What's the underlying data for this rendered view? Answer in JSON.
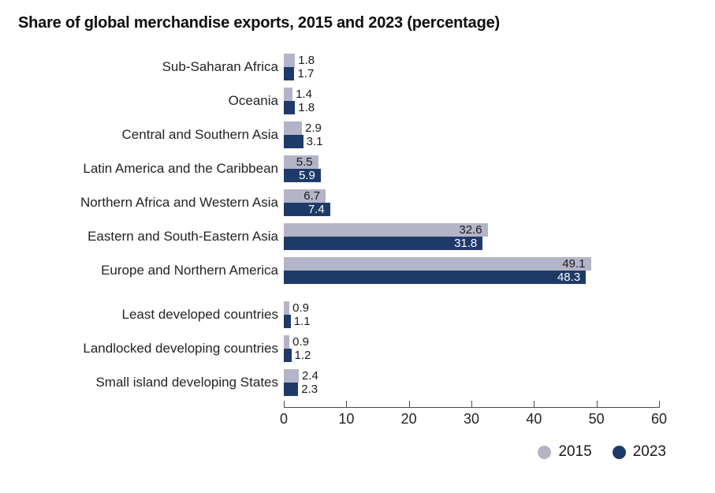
{
  "title": "Share of global merchandise exports, 2015 and 2023 (percentage)",
  "chart_data": {
    "type": "bar",
    "orientation": "horizontal",
    "title": "Share of global merchandise exports, 2015 and 2023 (percentage)",
    "categories": [
      "Sub-Saharan Africa",
      "Oceania",
      "Central and Southern Asia",
      "Latin America and the Caribbean",
      "Northern Africa and Western Asia",
      "Eastern and South-Eastern Asia",
      "Europe and Northern America",
      "Least developed countries",
      "Landlocked developing countries",
      "Small island developing States"
    ],
    "groups": [
      0,
      0,
      0,
      0,
      0,
      0,
      0,
      1,
      1,
      1
    ],
    "series": [
      {
        "name": "2015",
        "color": "#b3b4c7",
        "values": [
          1.8,
          1.4,
          2.9,
          5.5,
          6.7,
          32.6,
          49.1,
          0.9,
          0.9,
          2.4
        ]
      },
      {
        "name": "2023",
        "color": "#1e3a68",
        "values": [
          1.7,
          1.8,
          3.1,
          5.9,
          7.4,
          31.8,
          48.3,
          1.1,
          1.2,
          2.3
        ]
      }
    ],
    "x_axis": {
      "min": 0,
      "max": 60,
      "ticks": [
        0,
        10,
        20,
        30,
        40,
        50,
        60
      ]
    },
    "value_labels": true,
    "legend_position": "bottom-right",
    "colors": {
      "bar_2015": "#b3b4c7",
      "bar_2023": "#1e3a68",
      "label_on_light": "#1a1a1a",
      "label_on_dark": "#ffffff",
      "axis": "#4a4a4a",
      "text": "#232323"
    }
  },
  "legend": {
    "items": [
      {
        "label": "2015",
        "color": "#b3b4c7"
      },
      {
        "label": "2023",
        "color": "#1e3a68"
      }
    ]
  }
}
